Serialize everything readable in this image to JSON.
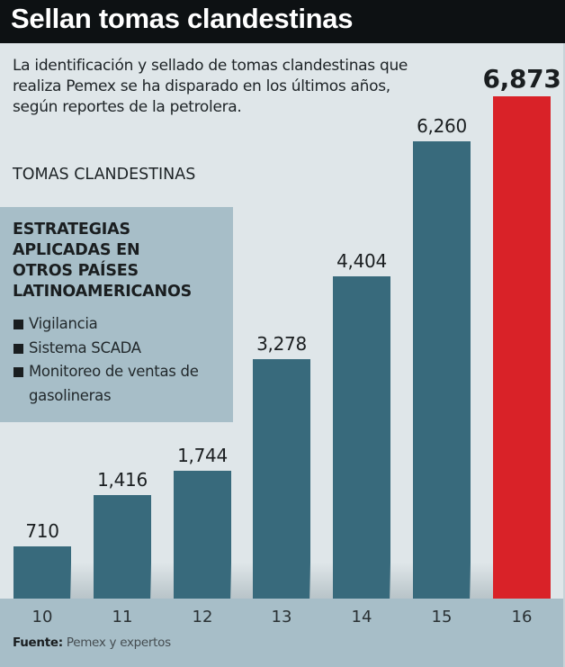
{
  "header": {
    "title": "Sellan tomas clandestinas"
  },
  "description": "La identificación y sellado de tomas clandestinas que realiza Pemex se ha disparado en los últimos años, según reportes de la petrolera.",
  "subtitle": "TOMAS CLANDESTINAS",
  "strategies": {
    "title": "ESTRATEGIAS APLICADAS EN OTROS PAÍSES LATINOAMERICANOS",
    "title_lines": [
      "ESTRATEGIAS",
      "APLICADAS EN",
      "OTROS PAÍSES",
      "LATINOAMERICANOS"
    ],
    "items": [
      "Vigilancia",
      "Sistema SCADA",
      "Monitoreo de ventas de gasolineras"
    ]
  },
  "source": {
    "label": "Fuente:",
    "text": "Pemex y expertos"
  },
  "colors": {
    "bar": "#386a7c",
    "highlight": "#d92228",
    "header_bg": "#0d1113",
    "panel_bg": "#a7bec8",
    "page_bg": "#dfe6e9"
  },
  "chart_data": {
    "type": "bar",
    "title": "Sellan tomas clandestinas",
    "subtitle": "TOMAS CLANDESTINAS",
    "categories": [
      "10",
      "11",
      "12",
      "13",
      "14",
      "15",
      "16"
    ],
    "values": [
      710,
      1416,
      1744,
      3278,
      4404,
      6260,
      6873
    ],
    "value_labels": [
      "710",
      "1,416",
      "1,744",
      "3,278",
      "4,404",
      "6,260",
      "6,873"
    ],
    "highlight_index": 6,
    "xlabel": "",
    "ylabel": "",
    "grid": false,
    "legend": null,
    "source": "Fuente: Pemex y expertos"
  }
}
